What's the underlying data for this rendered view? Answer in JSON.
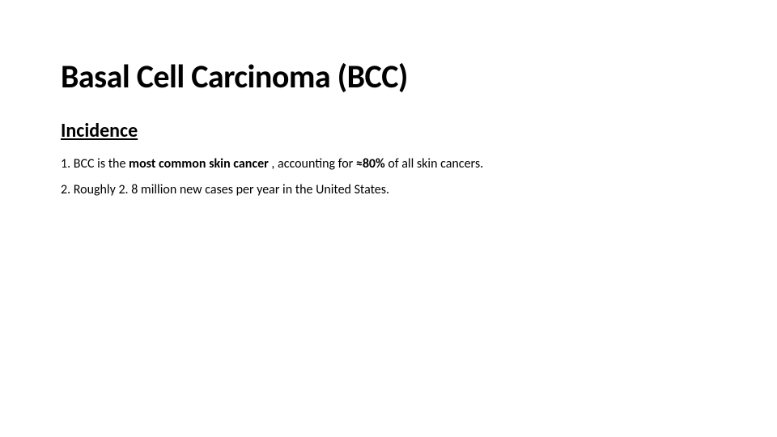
{
  "slide": {
    "title": "Basal Cell Carcinoma (BCC)",
    "section_heading": "Incidence",
    "line1": {
      "num": "1. ",
      "a": "BCC is the ",
      "b": "most common skin cancer ",
      "c": ", accounting for ",
      "d": "≈80% ",
      "e": "of all skin cancers."
    },
    "line2": "2. Roughly 2. 8 million new cases per year in the United States.",
    "colors": {
      "background": "#ffffff",
      "text": "#000000"
    },
    "fonts": {
      "family": "Calibri",
      "title_size_pt": 40,
      "section_size_pt": 24,
      "body_size_pt": 16
    }
  }
}
